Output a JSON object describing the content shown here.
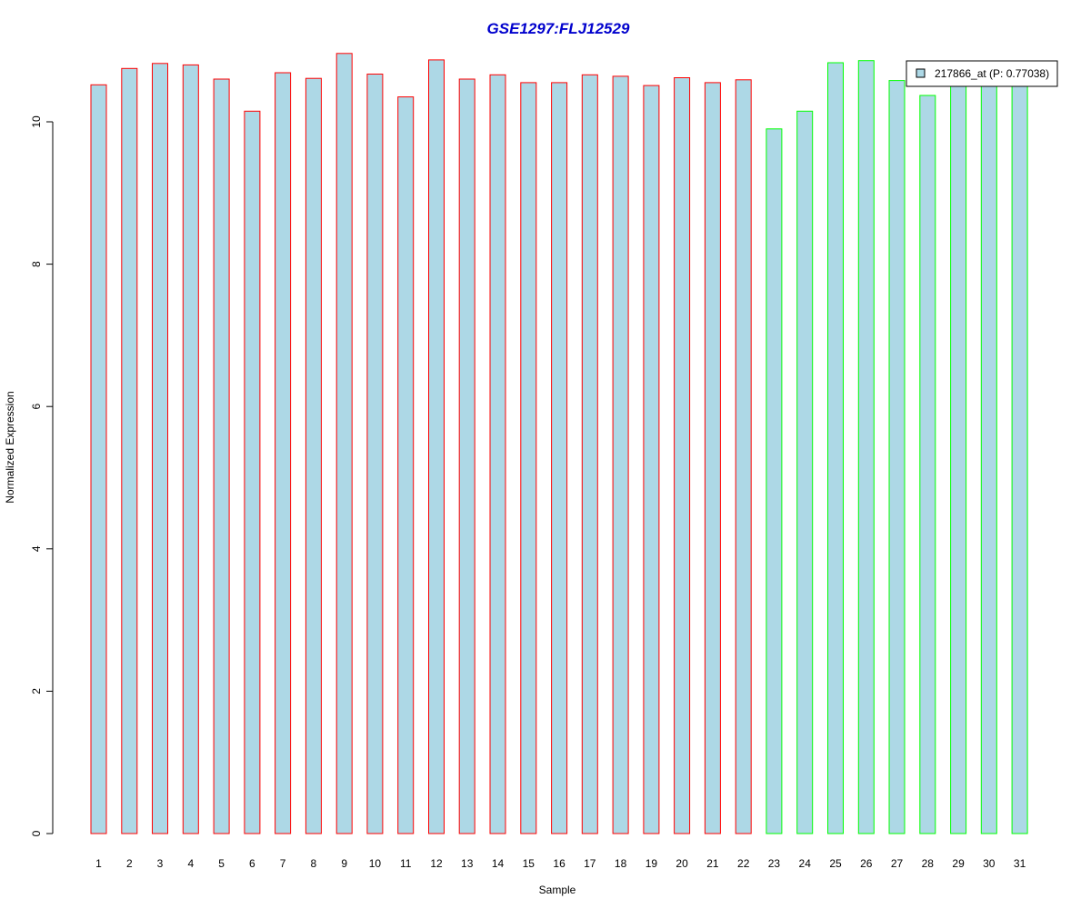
{
  "chart_data": {
    "type": "bar",
    "title": "GSE1297:FLJ12529",
    "xlabel": "Sample",
    "ylabel": "Normalized Expression",
    "ylim": [
      0,
      11
    ],
    "yticks": [
      0,
      2,
      4,
      6,
      8,
      10
    ],
    "grid": false,
    "legend_position": "top-right",
    "categories": [
      "1",
      "2",
      "3",
      "4",
      "5",
      "6",
      "7",
      "8",
      "9",
      "10",
      "11",
      "12",
      "13",
      "14",
      "15",
      "16",
      "17",
      "18",
      "19",
      "20",
      "21",
      "22",
      "23",
      "24",
      "25",
      "26",
      "27",
      "28",
      "29",
      "30",
      "31"
    ],
    "series": [
      {
        "name": "217866_at (P: 0.77038)",
        "values": [
          10.52,
          10.75,
          10.82,
          10.8,
          10.6,
          10.15,
          10.69,
          10.61,
          10.96,
          10.67,
          10.35,
          10.87,
          10.6,
          10.66,
          10.55,
          10.55,
          10.66,
          10.64,
          10.51,
          10.62,
          10.55,
          10.59,
          9.9,
          10.15,
          10.83,
          10.86,
          10.58,
          10.37,
          10.55,
          10.55,
          10.55
        ]
      }
    ],
    "bar_groups": [
      1,
      1,
      1,
      1,
      1,
      1,
      1,
      1,
      1,
      1,
      1,
      1,
      1,
      1,
      1,
      1,
      1,
      1,
      1,
      1,
      1,
      1,
      2,
      2,
      2,
      2,
      2,
      2,
      2,
      2,
      2
    ]
  },
  "colors": {
    "bar_fill": "#add8e6",
    "group_1_border": "#ff0000",
    "group_2_border": "#00ff00",
    "title": "#0000cd",
    "axis": "#000000"
  }
}
